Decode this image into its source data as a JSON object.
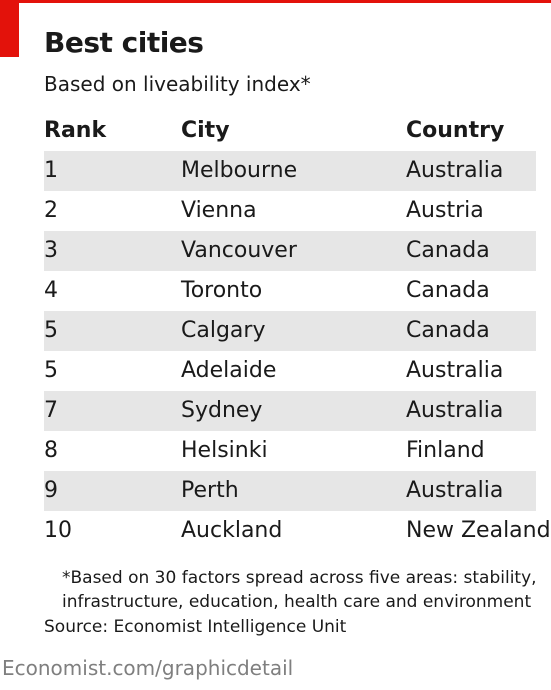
{
  "title": "Best cities",
  "subtitle": "Based on liveability index*",
  "accent_color": "#e3120b",
  "row_shade_color": "#e6e6e6",
  "chart_data": {
    "type": "table",
    "columns": [
      "Rank",
      "City",
      "Country"
    ],
    "rows": [
      [
        "1",
        "Melbourne",
        "Australia"
      ],
      [
        "2",
        "Vienna",
        "Austria"
      ],
      [
        "3",
        "Vancouver",
        "Canada"
      ],
      [
        "4",
        "Toronto",
        "Canada"
      ],
      [
        "5",
        "Calgary",
        "Canada"
      ],
      [
        "5",
        "Adelaide",
        "Australia"
      ],
      [
        "7",
        "Sydney",
        "Australia"
      ],
      [
        "8",
        "Helsinki",
        "Finland"
      ],
      [
        "9",
        "Perth",
        "Australia"
      ],
      [
        "10",
        "Auckland",
        "New Zealand"
      ]
    ]
  },
  "footnote": "*Based on 30 factors spread across five areas: stability, infrastructure, education, health care and environment",
  "source": "Source: Economist Intelligence Unit",
  "credit": "Economist.com/graphicdetail"
}
